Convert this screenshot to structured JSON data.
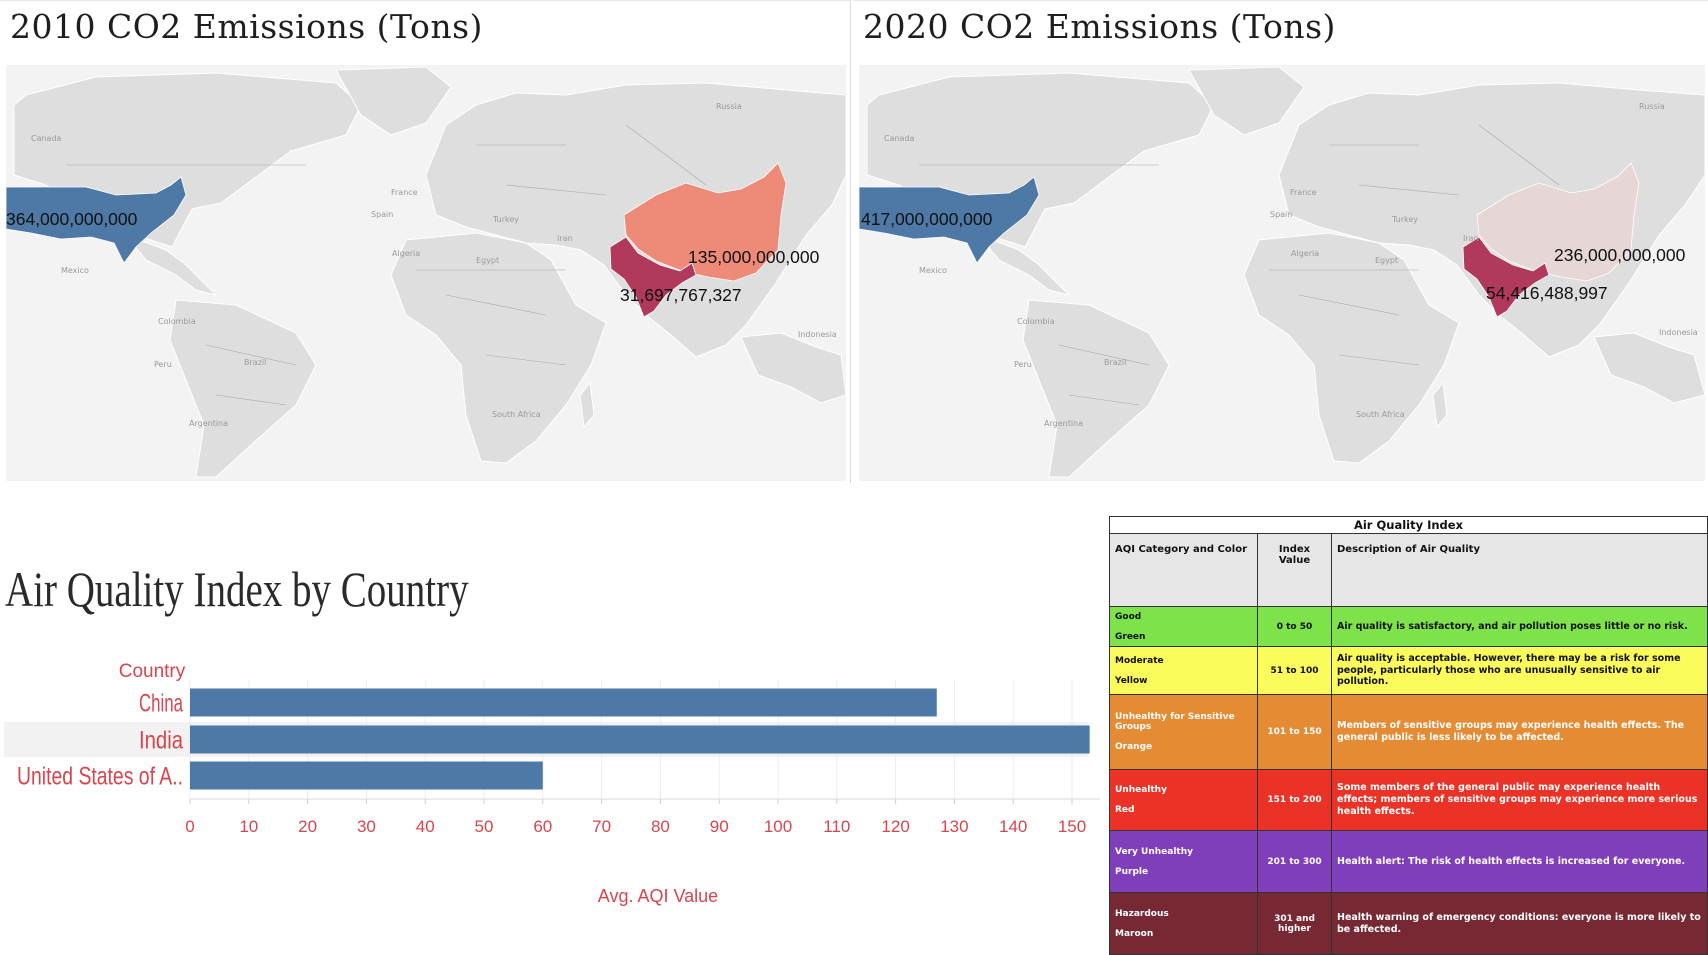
{
  "maps": [
    {
      "title": "2010 CO2 Emissions (Tons)",
      "place_labels": [
        "Canada",
        "Russia",
        "France",
        "Spain",
        "Turkey",
        "Iran",
        "Algeria",
        "Egypt",
        "Mexico",
        "Colombia",
        "Peru",
        "Brazil",
        "Argentina",
        "South Africa",
        "Indonesia"
      ],
      "emissions": {
        "usa": "364,000,000,000",
        "china": "135,000,000,000",
        "india": "31,697,767,327"
      },
      "colors": {
        "usa": "#4e79a7",
        "china": "#ee8a78",
        "india": "#b13a5c",
        "land": "#dedede",
        "border": "#a9a9a9",
        "water": "#f3f3f3"
      }
    },
    {
      "title": "2020 CO2 Emissions (Tons)",
      "place_labels": [
        "Canada",
        "Russia",
        "France",
        "Spain",
        "Turkey",
        "Iran",
        "Algeria",
        "Egypt",
        "Mexico",
        "Colombia",
        "Peru",
        "Brazil",
        "Argentina",
        "South Africa",
        "Indonesia"
      ],
      "emissions": {
        "usa": "417,000,000,000",
        "china": "236,000,000,000",
        "india": "54,416,488,997"
      },
      "colors": {
        "usa": "#4e79a7",
        "china": "#e7d6d6",
        "india": "#b13a5c",
        "land": "#dedede",
        "border": "#a9a9a9",
        "water": "#f3f3f3"
      }
    }
  ],
  "aqi_chart": {
    "title": "Air Quality Index by Country",
    "chart_data": {
      "type": "bar",
      "orientation": "horizontal",
      "title": "Air Quality Index by Country",
      "header_label": "Country",
      "categories": [
        "China",
        "India",
        "United States of A.."
      ],
      "values": [
        127,
        153,
        60
      ],
      "xlabel": "Avg. AQI Value",
      "xlim": [
        0,
        155
      ],
      "xticks": [
        0,
        10,
        20,
        30,
        40,
        50,
        60,
        70,
        80,
        90,
        100,
        110,
        120,
        130,
        140,
        150
      ],
      "bar_color": "#4e79a7",
      "label_color": "#d8454c",
      "highlighted_category": "India",
      "grid": true
    }
  },
  "aqi_reference": {
    "title": "Air Quality Index",
    "headers": {
      "category": "AQI Category and Color",
      "value": "Index Value",
      "description": "Description of Air Quality"
    },
    "rows": [
      {
        "category": "Good",
        "color_name": "Green",
        "range": "0 to 50",
        "description": "Air quality is satisfactory, and air pollution poses little or no risk.",
        "bg": "#7ee24a",
        "fg": "#111111"
      },
      {
        "category": "Moderate",
        "color_name": "Yellow",
        "range": "51 to 100",
        "description": "Air quality is acceptable. However, there may be a risk for some people, particularly those who are unusually sensitive to air pollution.",
        "bg": "#fbfb5c",
        "fg": "#111111"
      },
      {
        "category": "Unhealthy for Sensitive Groups",
        "color_name": "Orange",
        "range": "101 to 150",
        "description": "Members of sensitive groups may experience health effects. The general public is less likely to be affected.",
        "bg": "#e48b34",
        "fg": "#ffffff"
      },
      {
        "category": "Unhealthy",
        "color_name": "Red",
        "range": "151 to 200",
        "description": "Some members of the general public may experience health effects; members of sensitive groups may experience more serious health effects.",
        "bg": "#ea3326",
        "fg": "#ffffff"
      },
      {
        "category": "Very Unhealthy",
        "color_name": "Purple",
        "range": "201 to 300",
        "description": "Health alert: The risk of health effects is increased for everyone.",
        "bg": "#7f3eba",
        "fg": "#ffffff"
      },
      {
        "category": "Hazardous",
        "color_name": "Maroon",
        "range": "301 and higher",
        "description": "Health warning of emergency conditions: everyone is more likely to be affected.",
        "bg": "#772933",
        "fg": "#ffffff"
      }
    ]
  }
}
